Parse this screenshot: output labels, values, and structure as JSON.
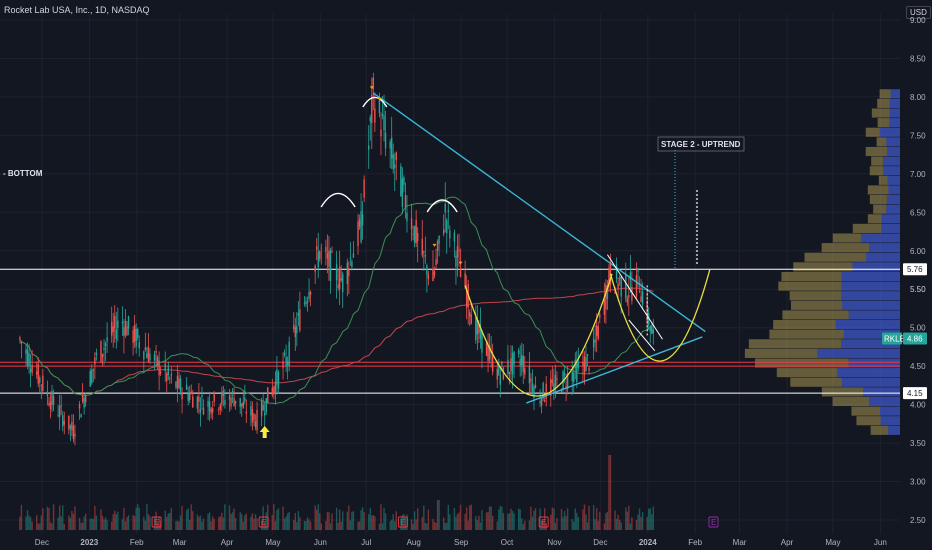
{
  "header": {
    "title": "Rocket Lab USA, Inc., 1D, NASDAQ",
    "currency": "USD"
  },
  "chart_data": {
    "type": "candlestick",
    "symbol": "RKLB",
    "interval": "1D",
    "exchange": "NASDAQ",
    "ylim": [
      2.4,
      9.0
    ],
    "y_ticks": [
      "9.00",
      "8.50",
      "8.00",
      "7.50",
      "7.00",
      "6.50",
      "6.00",
      "5.50",
      "5.00",
      "4.50",
      "4.00",
      "3.50",
      "3.00",
      "2.50"
    ],
    "x_ticks": [
      "Dec",
      "2023",
      "Feb",
      "Mar",
      "Apr",
      "May",
      "Jun",
      "Jul",
      "Aug",
      "Sep",
      "Oct",
      "Nov",
      "Dec",
      "2024",
      "Feb",
      "Mar",
      "Apr",
      "May",
      "Jun"
    ],
    "price_labels": [
      {
        "text": "5.76",
        "value": 5.76,
        "color": "#ffffff"
      },
      {
        "text": "5.50",
        "value": 5.5,
        "color": "#b2b5be"
      },
      {
        "text": "4.15",
        "value": 4.15,
        "color": "#ffffff"
      }
    ],
    "last_price": {
      "symbol": "RKLB",
      "value": 4.86,
      "color": "#26a69a"
    },
    "horizontal_lines": [
      {
        "value": 5.76,
        "color": "#ffffff"
      },
      {
        "value": 4.55,
        "color": "#f23645"
      },
      {
        "value": 4.5,
        "color": "#f23645"
      },
      {
        "value": 4.15,
        "color": "#ffffff"
      }
    ],
    "annotations": [
      {
        "text": "- BOTTOM"
      },
      {
        "text": "STAGE 2 - UPTREND"
      }
    ],
    "ohlc_anchors": [
      {
        "date": "2022-12-01",
        "close": 4.85
      },
      {
        "date": "2022-12-20",
        "close": 4.1
      },
      {
        "date": "2023-01-05",
        "close": 3.65
      },
      {
        "date": "2023-01-20",
        "close": 4.6
      },
      {
        "date": "2023-02-05",
        "close": 5.1
      },
      {
        "date": "2023-02-20",
        "close": 4.75
      },
      {
        "date": "2023-03-10",
        "close": 4.3
      },
      {
        "date": "2023-04-01",
        "close": 4.0
      },
      {
        "date": "2023-04-20",
        "close": 4.1
      },
      {
        "date": "2023-05-05",
        "close": 3.8
      },
      {
        "date": "2023-05-25",
        "close": 4.6
      },
      {
        "date": "2023-06-15",
        "close": 6.0
      },
      {
        "date": "2023-06-30",
        "close": 5.6
      },
      {
        "date": "2023-07-12",
        "close": 6.3
      },
      {
        "date": "2023-07-20",
        "close": 8.0
      },
      {
        "date": "2023-08-05",
        "close": 7.0
      },
      {
        "date": "2023-08-20",
        "close": 6.0
      },
      {
        "date": "2023-08-28",
        "close": 5.6
      },
      {
        "date": "2023-09-05",
        "close": 6.5
      },
      {
        "date": "2023-09-12",
        "close": 6.0
      },
      {
        "date": "2023-09-25",
        "close": 5.0
      },
      {
        "date": "2023-10-10",
        "close": 4.4
      },
      {
        "date": "2023-10-25",
        "close": 4.6
      },
      {
        "date": "2023-11-05",
        "close": 4.1
      },
      {
        "date": "2023-11-20",
        "close": 4.3
      },
      {
        "date": "2023-12-10",
        "close": 4.6
      },
      {
        "date": "2023-12-22",
        "close": 5.7
      },
      {
        "date": "2024-01-02",
        "close": 5.5
      },
      {
        "date": "2024-01-10",
        "close": 5.6
      },
      {
        "date": "2024-01-19",
        "close": 4.86
      }
    ],
    "moving_average_slow_color": "#c2454d",
    "moving_average_fast_color": "#3c8f57",
    "trendline_color": "#3ab6d6",
    "cup_color": "#e8e03d",
    "volume_profile": {
      "up_color": "#c9b25b",
      "down_color": "#3f58c9"
    }
  }
}
